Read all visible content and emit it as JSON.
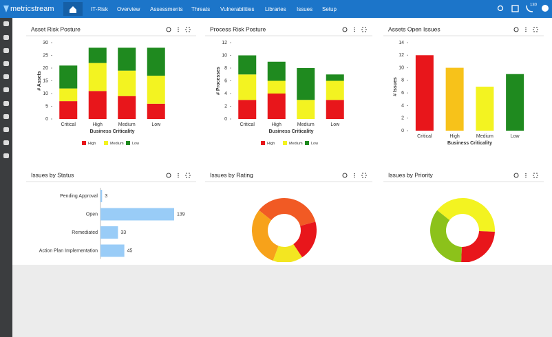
{
  "header": {
    "logo": "metricstream",
    "breadcrumb": "IT-Risk",
    "nav": [
      "Overview",
      "Assessments",
      "Threats",
      "Vulnerabilities",
      "Libraries",
      "Issues",
      "Setup"
    ],
    "badge": "130"
  },
  "widgets": [
    {
      "title": "Asset Risk Posture",
      "chart_data": {
        "type": "stacked-bar",
        "categories": [
          "Critical",
          "High",
          "Medium",
          "Low"
        ],
        "x_label": "Business Criticality",
        "y_label": "# Assets",
        "ylim": [
          0,
          30
        ],
        "yticks": [
          0,
          5,
          10,
          15,
          20,
          25,
          30
        ],
        "series": [
          {
            "name": "High",
            "color": "#e8161b",
            "values": [
              7,
              11,
              9,
              6
            ]
          },
          {
            "name": "Medium",
            "color": "#f3f321",
            "values": [
              5,
              11,
              10,
              11
            ]
          },
          {
            "name": "Low",
            "color": "#1f8a1f",
            "values": [
              9,
              6,
              9,
              11
            ]
          }
        ]
      }
    },
    {
      "title": "Process Risk Posture",
      "chart_data": {
        "type": "stacked-bar",
        "categories": [
          "Critical",
          "High",
          "Medium",
          "Low"
        ],
        "x_label": "Business Criticality",
        "y_label": "# Processes",
        "ylim": [
          0,
          12
        ],
        "yticks": [
          0,
          2,
          4,
          6,
          8,
          10,
          12
        ],
        "series": [
          {
            "name": "High",
            "color": "#e8161b",
            "values": [
              3,
              4,
              0,
              3
            ]
          },
          {
            "name": "Medium",
            "color": "#f3f321",
            "values": [
              4,
              2,
              3,
              3
            ]
          },
          {
            "name": "Low",
            "color": "#1f8a1f",
            "values": [
              3,
              3,
              5,
              1
            ]
          }
        ]
      }
    },
    {
      "title": "Assets Open Issues",
      "chart_data": {
        "type": "bar",
        "categories": [
          "Critical",
          "High",
          "Medium",
          "Low"
        ],
        "x_label": "Business Criticality",
        "y_label": "# Issues",
        "ylim": [
          0,
          14
        ],
        "yticks": [
          0,
          2,
          4,
          6,
          8,
          10,
          12,
          14
        ],
        "values": [
          12,
          10,
          7,
          9
        ],
        "colors": [
          "#e8161b",
          "#f7c21a",
          "#f3f321",
          "#1f8a1f"
        ]
      }
    },
    {
      "title": "Issues by Status",
      "chart_data": {
        "type": "hbar",
        "categories": [
          "Pending Approval",
          "Open",
          "Remediated",
          "Action Plan Implementation"
        ],
        "values": [
          3,
          139,
          33,
          45
        ],
        "color": "#99ccf7"
      }
    },
    {
      "title": "Issues by Rating",
      "chart_data": {
        "type": "donut",
        "values": [
          35,
          20,
          15,
          30
        ],
        "colors": [
          "#f15a24",
          "#e8161b",
          "#f3e621",
          "#f7a21a"
        ]
      }
    },
    {
      "title": "Issues by Priority",
      "chart_data": {
        "type": "donut",
        "values": [
          40,
          25,
          35
        ],
        "colors": [
          "#f3f321",
          "#e8161b",
          "#8cc21a"
        ]
      }
    }
  ]
}
